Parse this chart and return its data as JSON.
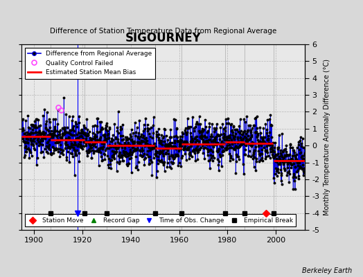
{
  "title": "SIGOURNEY",
  "subtitle": "Difference of Station Temperature Data from Regional Average",
  "ylabel": "Monthly Temperature Anomaly Difference (°C)",
  "xlim": [
    1895,
    2012
  ],
  "ylim": [
    -5,
    6
  ],
  "yticks": [
    -5,
    -4,
    -3,
    -2,
    -1,
    0,
    1,
    2,
    3,
    4,
    5,
    6
  ],
  "xticks": [
    1900,
    1920,
    1940,
    1960,
    1980,
    2000
  ],
  "bg_color": "#d8d8d8",
  "plot_bg_color": "#e8e8e8",
  "line_color": "#0000dd",
  "marker_color": "#000000",
  "qc_color": "#ff44ff",
  "bias_color": "#ff0000",
  "bias_linewidth": 2.0,
  "seed": 42,
  "station_move_years": [
    1996
  ],
  "station_move_color": "#ff0000",
  "record_gap_years": [],
  "tobs_change_years": [
    1918
  ],
  "tobs_color": "#0000ff",
  "empirical_break_years": [
    1907,
    1921,
    1930,
    1950,
    1961,
    1979,
    1987,
    1999
  ],
  "empirical_break_color": "#000000",
  "qc_fail_indices": [
    180,
    195
  ],
  "segment_biases": [
    {
      "start": 1895,
      "end": 1907,
      "bias": 0.55
    },
    {
      "start": 1907,
      "end": 1921,
      "bias": 0.35
    },
    {
      "start": 1921,
      "end": 1930,
      "bias": 0.2
    },
    {
      "start": 1930,
      "end": 1950,
      "bias": 0.0
    },
    {
      "start": 1950,
      "end": 1961,
      "bias": -0.15
    },
    {
      "start": 1961,
      "end": 1979,
      "bias": 0.1
    },
    {
      "start": 1979,
      "end": 1987,
      "bias": 0.2
    },
    {
      "start": 1987,
      "end": 1999,
      "bias": 0.15
    },
    {
      "start": 1999,
      "end": 2012,
      "bias": -0.9
    }
  ],
  "watermark": "Berkeley Earth"
}
